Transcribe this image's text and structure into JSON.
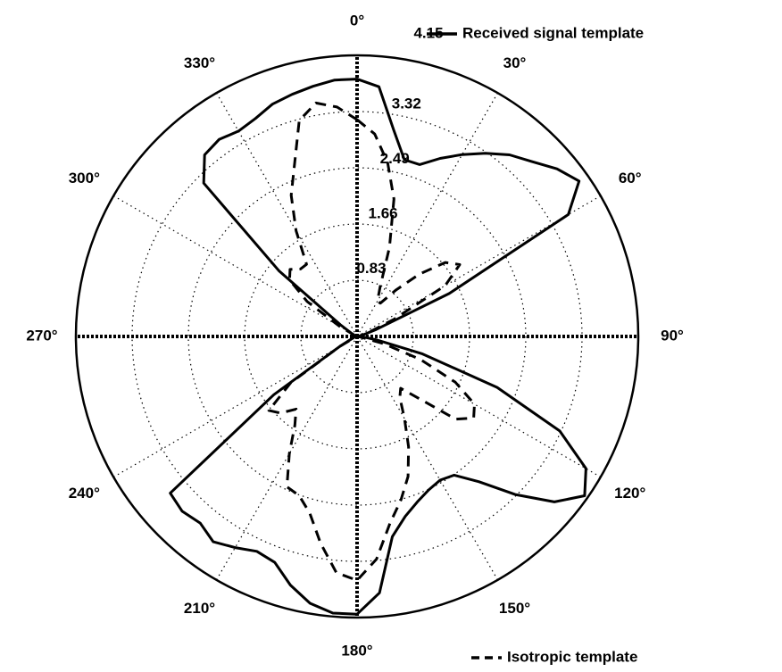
{
  "chart_data": {
    "type": "polar",
    "theta": [
      0,
      5,
      10,
      15,
      20,
      25,
      30,
      35,
      40,
      45,
      50,
      55,
      60,
      65,
      70,
      75,
      80,
      85,
      90,
      95,
      100,
      105,
      110,
      115,
      120,
      125,
      130,
      135,
      140,
      145,
      150,
      155,
      160,
      165,
      170,
      175,
      180,
      185,
      190,
      195,
      200,
      205,
      210,
      215,
      220,
      225,
      230,
      235,
      240,
      245,
      250,
      255,
      260,
      265,
      270,
      275,
      280,
      285,
      290,
      295,
      300,
      305,
      310,
      315,
      320,
      325,
      330,
      335,
      340,
      345,
      350,
      355
    ],
    "series": [
      {
        "name": "Received signal template",
        "color": "#000000",
        "dash": false,
        "values": [
          3.8,
          3.7,
          3.1,
          2.7,
          2.7,
          2.9,
          3.1,
          3.3,
          3.5,
          3.65,
          3.85,
          4.0,
          3.6,
          1.5,
          0.3,
          0.1,
          0.05,
          0.05,
          0.05,
          0.1,
          0.3,
          1.0,
          2.2,
          3.3,
          3.9,
          4.1,
          3.8,
          3.3,
          2.8,
          2.5,
          2.45,
          2.5,
          2.6,
          2.75,
          3.0,
          3.8,
          4.1,
          4.1,
          4.0,
          3.8,
          3.55,
          3.5,
          3.6,
          3.7,
          3.6,
          3.65,
          3.6,
          1.5,
          0.3,
          0.1,
          0.05,
          0.05,
          0.05,
          0.05,
          0.05,
          0.05,
          0.05,
          0.05,
          0.05,
          0.05,
          0.1,
          0.3,
          1.5,
          3.2,
          3.5,
          3.55,
          3.5,
          3.55,
          3.65,
          3.7,
          3.75,
          3.8
        ]
      },
      {
        "name": "Isotropic template",
        "color": "#000000",
        "dash": true,
        "values": [
          3.2,
          3.0,
          2.6,
          2.1,
          1.4,
          0.8,
          0.6,
          0.6,
          0.9,
          1.3,
          1.7,
          1.85,
          1.5,
          0.6,
          0.2,
          0.05,
          0.05,
          0.05,
          0.05,
          0.05,
          0.05,
          0.4,
          1.0,
          1.6,
          2.0,
          2.1,
          1.9,
          1.3,
          1.0,
          1.1,
          1.4,
          1.8,
          2.2,
          2.5,
          2.8,
          3.3,
          3.6,
          3.5,
          3.1,
          2.7,
          2.5,
          2.45,
          2.0,
          1.6,
          1.4,
          1.6,
          1.7,
          1.2,
          0.3,
          0.05,
          0.05,
          0.05,
          0.05,
          0.05,
          0.05,
          0.05,
          0.05,
          0.05,
          0.05,
          0.05,
          0.3,
          0.9,
          1.3,
          1.4,
          1.3,
          1.3,
          1.8,
          2.3,
          2.7,
          3.3,
          3.5,
          3.4
        ]
      }
    ],
    "rlim": [
      0,
      4.15
    ],
    "rticks": [
      0.83,
      1.66,
      2.49,
      3.32,
      4.15
    ],
    "thetaticks": [
      {
        "value": 0,
        "label": "0°"
      },
      {
        "value": 30,
        "label": "30°"
      },
      {
        "value": 60,
        "label": "60°"
      },
      {
        "value": 90,
        "label": "90°"
      },
      {
        "value": 120,
        "label": "120°"
      },
      {
        "value": 150,
        "label": "150°"
      },
      {
        "value": 180,
        "label": "180°"
      },
      {
        "value": 210,
        "label": "210°"
      },
      {
        "value": 240,
        "label": "240°"
      },
      {
        "value": 270,
        "label": "270°"
      },
      {
        "value": 300,
        "label": "300°"
      },
      {
        "value": 330,
        "label": "330°"
      }
    ],
    "grid": true
  }
}
